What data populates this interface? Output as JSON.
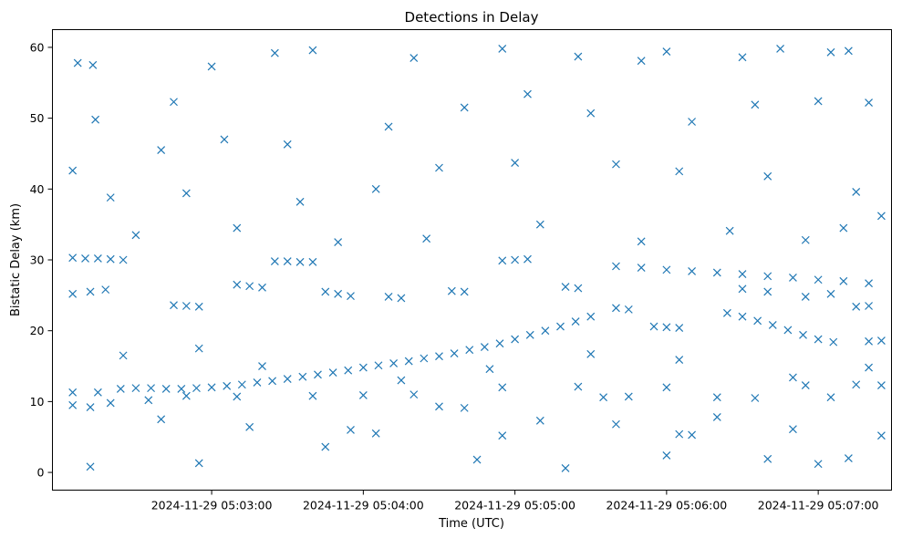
{
  "chart_data": {
    "type": "scatter",
    "title": "Detections in Delay",
    "xlabel": "Time (UTC)",
    "ylabel": "Bistatic Delay (km)",
    "x_axis": {
      "kind": "datetime",
      "range": [
        "2024-11-29 05:01:57",
        "2024-11-29 05:07:29"
      ],
      "ticks": [
        {
          "value": "2024-11-29 05:03:00",
          "label": "2024-11-29 05:03:00"
        },
        {
          "value": "2024-11-29 05:04:00",
          "label": "2024-11-29 05:04:00"
        },
        {
          "value": "2024-11-29 05:05:00",
          "label": "2024-11-29 05:05:00"
        },
        {
          "value": "2024-11-29 05:06:00",
          "label": "2024-11-29 05:06:00"
        },
        {
          "value": "2024-11-29 05:07:00",
          "label": "2024-11-29 05:07:00"
        }
      ]
    },
    "y_axis": {
      "range": [
        -2.5,
        62.5
      ],
      "ticks": [
        0,
        10,
        20,
        30,
        40,
        50,
        60
      ]
    },
    "grid": false,
    "marker": "x",
    "color": "#1f77b4",
    "series": [
      {
        "name": "",
        "points": [
          {
            "t": "2024-11-29 05:02:24",
            "y": 11.8
          },
          {
            "t": "2024-11-29 05:02:30",
            "y": 11.9
          },
          {
            "t": "2024-11-29 05:02:36",
            "y": 11.9
          },
          {
            "t": "2024-11-29 05:02:42",
            "y": 11.8
          },
          {
            "t": "2024-11-29 05:02:48",
            "y": 11.8
          },
          {
            "t": "2024-11-29 05:02:54",
            "y": 11.9
          },
          {
            "t": "2024-11-29 05:03:00",
            "y": 12.0
          },
          {
            "t": "2024-11-29 05:03:06",
            "y": 12.2
          },
          {
            "t": "2024-11-29 05:03:12",
            "y": 12.4
          },
          {
            "t": "2024-11-29 05:03:18",
            "y": 12.7
          },
          {
            "t": "2024-11-29 05:03:24",
            "y": 12.9
          },
          {
            "t": "2024-11-29 05:03:30",
            "y": 13.2
          },
          {
            "t": "2024-11-29 05:03:36",
            "y": 13.5
          },
          {
            "t": "2024-11-29 05:03:42",
            "y": 13.8
          },
          {
            "t": "2024-11-29 05:03:48",
            "y": 14.1
          },
          {
            "t": "2024-11-29 05:03:54",
            "y": 14.4
          },
          {
            "t": "2024-11-29 05:04:00",
            "y": 14.8
          },
          {
            "t": "2024-11-29 05:04:06",
            "y": 15.1
          },
          {
            "t": "2024-11-29 05:04:12",
            "y": 15.4
          },
          {
            "t": "2024-11-29 05:04:18",
            "y": 15.7
          },
          {
            "t": "2024-11-29 05:04:24",
            "y": 16.1
          },
          {
            "t": "2024-11-29 05:04:30",
            "y": 16.4
          },
          {
            "t": "2024-11-29 05:04:36",
            "y": 16.8
          },
          {
            "t": "2024-11-29 05:04:42",
            "y": 17.3
          },
          {
            "t": "2024-11-29 05:04:48",
            "y": 17.7
          },
          {
            "t": "2024-11-29 05:04:54",
            "y": 18.2
          },
          {
            "t": "2024-11-29 05:05:00",
            "y": 18.8
          },
          {
            "t": "2024-11-29 05:05:06",
            "y": 19.4
          },
          {
            "t": "2024-11-29 05:05:12",
            "y": 20.0
          },
          {
            "t": "2024-11-29 05:05:18",
            "y": 20.6
          },
          {
            "t": "2024-11-29 05:05:24",
            "y": 21.3
          },
          {
            "t": "2024-11-29 05:05:30",
            "y": 22.0
          },
          {
            "t": "2024-11-29 05:05:40",
            "y": 29.1
          },
          {
            "t": "2024-11-29 05:05:50",
            "y": 28.9
          },
          {
            "t": "2024-11-29 05:06:00",
            "y": 28.6
          },
          {
            "t": "2024-11-29 05:06:10",
            "y": 28.4
          },
          {
            "t": "2024-11-29 05:06:20",
            "y": 28.2
          },
          {
            "t": "2024-11-29 05:06:30",
            "y": 28.0
          },
          {
            "t": "2024-11-29 05:06:40",
            "y": 27.7
          },
          {
            "t": "2024-11-29 05:06:50",
            "y": 27.5
          },
          {
            "t": "2024-11-29 05:07:00",
            "y": 27.2
          },
          {
            "t": "2024-11-29 05:07:10",
            "y": 27.0
          },
          {
            "t": "2024-11-29 05:07:20",
            "y": 26.7
          },
          {
            "t": "2024-11-29 05:06:24",
            "y": 22.5
          },
          {
            "t": "2024-11-29 05:06:30",
            "y": 22.0
          },
          {
            "t": "2024-11-29 05:06:36",
            "y": 21.4
          },
          {
            "t": "2024-11-29 05:06:42",
            "y": 20.8
          },
          {
            "t": "2024-11-29 05:06:48",
            "y": 20.1
          },
          {
            "t": "2024-11-29 05:06:54",
            "y": 19.4
          },
          {
            "t": "2024-11-29 05:07:00",
            "y": 18.8
          },
          {
            "t": "2024-11-29 05:07:06",
            "y": 18.4
          },
          {
            "t": "2024-11-29 05:02:05",
            "y": 30.3
          },
          {
            "t": "2024-11-29 05:02:10",
            "y": 30.2
          },
          {
            "t": "2024-11-29 05:02:15",
            "y": 30.2
          },
          {
            "t": "2024-11-29 05:02:20",
            "y": 30.1
          },
          {
            "t": "2024-11-29 05:02:25",
            "y": 30.0
          },
          {
            "t": "2024-11-29 05:03:25",
            "y": 29.8
          },
          {
            "t": "2024-11-29 05:03:30",
            "y": 29.8
          },
          {
            "t": "2024-11-29 05:03:35",
            "y": 29.7
          },
          {
            "t": "2024-11-29 05:03:40",
            "y": 29.7
          },
          {
            "t": "2024-11-29 05:04:55",
            "y": 29.9
          },
          {
            "t": "2024-11-29 05:05:00",
            "y": 30.0
          },
          {
            "t": "2024-11-29 05:05:05",
            "y": 30.1
          },
          {
            "t": "2024-11-29 05:02:05",
            "y": 25.2
          },
          {
            "t": "2024-11-29 05:02:12",
            "y": 25.5
          },
          {
            "t": "2024-11-29 05:02:18",
            "y": 25.8
          },
          {
            "t": "2024-11-29 05:02:45",
            "y": 23.6
          },
          {
            "t": "2024-11-29 05:02:50",
            "y": 23.5
          },
          {
            "t": "2024-11-29 05:02:55",
            "y": 23.4
          },
          {
            "t": "2024-11-29 05:03:10",
            "y": 26.5
          },
          {
            "t": "2024-11-29 05:03:15",
            "y": 26.3
          },
          {
            "t": "2024-11-29 05:03:20",
            "y": 26.1
          },
          {
            "t": "2024-11-29 05:03:45",
            "y": 25.5
          },
          {
            "t": "2024-11-29 05:03:50",
            "y": 25.2
          },
          {
            "t": "2024-11-29 05:03:55",
            "y": 24.9
          },
          {
            "t": "2024-11-29 05:04:10",
            "y": 24.8
          },
          {
            "t": "2024-11-29 05:04:15",
            "y": 24.6
          },
          {
            "t": "2024-11-29 05:04:35",
            "y": 25.6
          },
          {
            "t": "2024-11-29 05:04:40",
            "y": 25.5
          },
          {
            "t": "2024-11-29 05:05:20",
            "y": 26.2
          },
          {
            "t": "2024-11-29 05:05:25",
            "y": 26.0
          },
          {
            "t": "2024-11-29 05:05:40",
            "y": 23.2
          },
          {
            "t": "2024-11-29 05:05:45",
            "y": 23.0
          },
          {
            "t": "2024-11-29 05:06:30",
            "y": 25.9
          },
          {
            "t": "2024-11-29 05:06:40",
            "y": 25.5
          },
          {
            "t": "2024-11-29 05:06:55",
            "y": 24.8
          },
          {
            "t": "2024-11-29 05:07:05",
            "y": 25.2
          },
          {
            "t": "2024-11-29 05:07:15",
            "y": 23.4
          },
          {
            "t": "2024-11-29 05:07:20",
            "y": 23.5
          },
          {
            "t": "2024-11-29 05:05:55",
            "y": 20.6
          },
          {
            "t": "2024-11-29 05:06:00",
            "y": 20.5
          },
          {
            "t": "2024-11-29 05:06:05",
            "y": 20.4
          },
          {
            "t": "2024-11-29 05:07:20",
            "y": 18.5
          },
          {
            "t": "2024-11-29 05:07:25",
            "y": 18.6
          },
          {
            "t": "2024-11-29 05:02:05",
            "y": 11.3
          },
          {
            "t": "2024-11-29 05:02:15",
            "y": 11.3
          },
          {
            "t": "2024-11-29 05:02:05",
            "y": 9.5
          },
          {
            "t": "2024-11-29 05:02:12",
            "y": 9.2
          },
          {
            "t": "2024-11-29 05:02:20",
            "y": 9.8
          },
          {
            "t": "2024-11-29 05:02:35",
            "y": 10.2
          },
          {
            "t": "2024-11-29 05:02:50",
            "y": 10.8
          },
          {
            "t": "2024-11-29 05:03:10",
            "y": 10.7
          },
          {
            "t": "2024-11-29 05:03:40",
            "y": 10.8
          },
          {
            "t": "2024-11-29 05:04:00",
            "y": 10.9
          },
          {
            "t": "2024-11-29 05:04:20",
            "y": 11.0
          },
          {
            "t": "2024-11-29 05:04:30",
            "y": 9.3
          },
          {
            "t": "2024-11-29 05:04:40",
            "y": 9.1
          },
          {
            "t": "2024-11-29 05:04:55",
            "y": 12.0
          },
          {
            "t": "2024-11-29 05:05:25",
            "y": 12.1
          },
          {
            "t": "2024-11-29 05:05:35",
            "y": 10.6
          },
          {
            "t": "2024-11-29 05:05:45",
            "y": 10.7
          },
          {
            "t": "2024-11-29 05:06:00",
            "y": 12.0
          },
          {
            "t": "2024-11-29 05:06:20",
            "y": 10.6
          },
          {
            "t": "2024-11-29 05:06:35",
            "y": 10.5
          },
          {
            "t": "2024-11-29 05:06:55",
            "y": 12.3
          },
          {
            "t": "2024-11-29 05:07:05",
            "y": 10.6
          },
          {
            "t": "2024-11-29 05:07:15",
            "y": 12.4
          },
          {
            "t": "2024-11-29 05:07:25",
            "y": 12.3
          },
          {
            "t": "2024-11-29 05:06:05",
            "y": 5.4
          },
          {
            "t": "2024-11-29 05:06:10",
            "y": 5.3
          },
          {
            "t": "2024-11-29 05:06:00",
            "y": 2.4
          },
          {
            "t": "2024-11-29 05:02:12",
            "y": 0.8
          },
          {
            "t": "2024-11-29 05:05:20",
            "y": 0.6
          },
          {
            "t": "2024-11-29 05:02:55",
            "y": 1.3
          },
          {
            "t": "2024-11-29 05:04:45",
            "y": 1.8
          },
          {
            "t": "2024-11-29 05:06:40",
            "y": 1.9
          },
          {
            "t": "2024-11-29 05:07:00",
            "y": 1.2
          },
          {
            "t": "2024-11-29 05:07:12",
            "y": 2.0
          },
          {
            "t": "2024-11-29 05:03:45",
            "y": 3.6
          },
          {
            "t": "2024-11-29 05:03:55",
            "y": 6.0
          },
          {
            "t": "2024-11-29 05:04:55",
            "y": 5.2
          },
          {
            "t": "2024-11-29 05:06:50",
            "y": 6.1
          },
          {
            "t": "2024-11-29 05:02:05",
            "y": 42.6
          },
          {
            "t": "2024-11-29 05:02:07",
            "y": 57.8
          },
          {
            "t": "2024-11-29 05:02:13",
            "y": 57.5
          },
          {
            "t": "2024-11-29 05:02:14",
            "y": 49.8
          },
          {
            "t": "2024-11-29 05:02:45",
            "y": 52.3
          },
          {
            "t": "2024-11-29 05:03:00",
            "y": 57.3
          },
          {
            "t": "2024-11-29 05:03:25",
            "y": 59.2
          },
          {
            "t": "2024-11-29 05:03:40",
            "y": 59.6
          },
          {
            "t": "2024-11-29 05:04:20",
            "y": 58.5
          },
          {
            "t": "2024-11-29 05:04:55",
            "y": 59.8
          },
          {
            "t": "2024-11-29 05:05:25",
            "y": 58.7
          },
          {
            "t": "2024-11-29 05:05:50",
            "y": 58.1
          },
          {
            "t": "2024-11-29 05:06:00",
            "y": 59.4
          },
          {
            "t": "2024-11-29 05:06:30",
            "y": 58.6
          },
          {
            "t": "2024-11-29 05:06:45",
            "y": 59.8
          },
          {
            "t": "2024-11-29 05:07:05",
            "y": 59.3
          },
          {
            "t": "2024-11-29 05:07:12",
            "y": 59.5
          },
          {
            "t": "2024-11-29 05:02:40",
            "y": 45.5
          },
          {
            "t": "2024-11-29 05:03:05",
            "y": 47.0
          },
          {
            "t": "2024-11-29 05:03:30",
            "y": 46.3
          },
          {
            "t": "2024-11-29 05:04:10",
            "y": 48.8
          },
          {
            "t": "2024-11-29 05:04:40",
            "y": 51.5
          },
          {
            "t": "2024-11-29 05:05:05",
            "y": 53.4
          },
          {
            "t": "2024-11-29 05:05:30",
            "y": 50.7
          },
          {
            "t": "2024-11-29 05:06:10",
            "y": 49.5
          },
          {
            "t": "2024-11-29 05:06:35",
            "y": 51.9
          },
          {
            "t": "2024-11-29 05:07:00",
            "y": 52.4
          },
          {
            "t": "2024-11-29 05:07:20",
            "y": 52.2
          },
          {
            "t": "2024-11-29 05:02:20",
            "y": 38.8
          },
          {
            "t": "2024-11-29 05:02:50",
            "y": 39.4
          },
          {
            "t": "2024-11-29 05:03:35",
            "y": 38.2
          },
          {
            "t": "2024-11-29 05:04:05",
            "y": 40.0
          },
          {
            "t": "2024-11-29 05:04:30",
            "y": 43.0
          },
          {
            "t": "2024-11-29 05:05:00",
            "y": 43.7
          },
          {
            "t": "2024-11-29 05:05:40",
            "y": 43.5
          },
          {
            "t": "2024-11-29 05:06:05",
            "y": 42.5
          },
          {
            "t": "2024-11-29 05:06:40",
            "y": 41.8
          },
          {
            "t": "2024-11-29 05:07:15",
            "y": 39.6
          },
          {
            "t": "2024-11-29 05:07:25",
            "y": 36.2
          },
          {
            "t": "2024-11-29 05:02:30",
            "y": 33.5
          },
          {
            "t": "2024-11-29 05:03:10",
            "y": 34.5
          },
          {
            "t": "2024-11-29 05:03:50",
            "y": 32.5
          },
          {
            "t": "2024-11-29 05:04:25",
            "y": 33.0
          },
          {
            "t": "2024-11-29 05:05:10",
            "y": 35.0
          },
          {
            "t": "2024-11-29 05:05:50",
            "y": 32.6
          },
          {
            "t": "2024-11-29 05:06:25",
            "y": 34.1
          },
          {
            "t": "2024-11-29 05:06:55",
            "y": 32.8
          },
          {
            "t": "2024-11-29 05:07:10",
            "y": 34.5
          },
          {
            "t": "2024-11-29 05:02:25",
            "y": 16.5
          },
          {
            "t": "2024-11-29 05:02:55",
            "y": 17.5
          },
          {
            "t": "2024-11-29 05:03:20",
            "y": 15.0
          },
          {
            "t": "2024-11-29 05:04:15",
            "y": 13.0
          },
          {
            "t": "2024-11-29 05:04:50",
            "y": 14.6
          },
          {
            "t": "2024-11-29 05:05:30",
            "y": 16.7
          },
          {
            "t": "2024-11-29 05:06:05",
            "y": 15.9
          },
          {
            "t": "2024-11-29 05:06:50",
            "y": 13.4
          },
          {
            "t": "2024-11-29 05:07:20",
            "y": 14.8
          },
          {
            "t": "2024-11-29 05:02:40",
            "y": 7.5
          },
          {
            "t": "2024-11-29 05:03:15",
            "y": 6.4
          },
          {
            "t": "2024-11-29 05:04:05",
            "y": 5.5
          },
          {
            "t": "2024-11-29 05:05:10",
            "y": 7.3
          },
          {
            "t": "2024-11-29 05:05:40",
            "y": 6.8
          },
          {
            "t": "2024-11-29 05:06:20",
            "y": 7.8
          },
          {
            "t": "2024-11-29 05:07:25",
            "y": 5.2
          }
        ]
      }
    ]
  }
}
